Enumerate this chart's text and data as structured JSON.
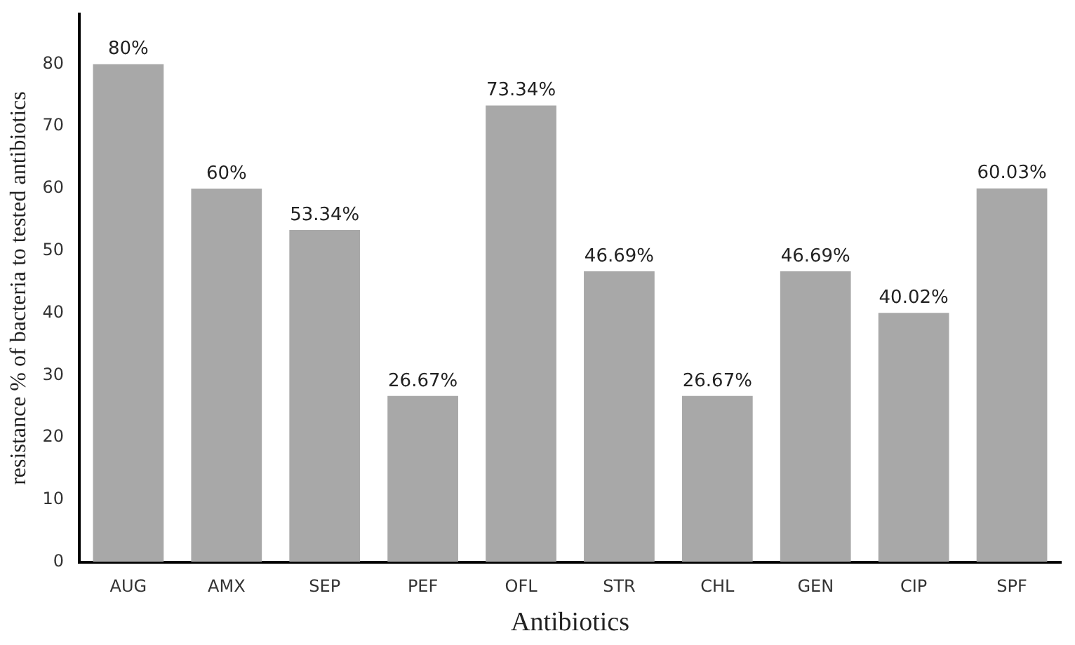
{
  "chart_data": {
    "type": "bar",
    "xlabel": "Antibiotics",
    "ylabel": "resistance % of bacteria to tested antibiotics",
    "categories": [
      "AUG",
      "AMX",
      "SEP",
      "PEF",
      "OFL",
      "STR",
      "CHL",
      "GEN",
      "CIP",
      "SPF"
    ],
    "values": [
      80,
      60,
      53.34,
      26.67,
      73.34,
      46.69,
      26.67,
      46.69,
      40.02,
      60.03
    ],
    "value_labels": [
      "80%",
      "60%",
      "53.34%",
      "26.67%",
      "73.34%",
      "46.69%",
      "26.67%",
      "46.69%",
      "40.02%",
      "60.03%"
    ],
    "color": "#a8a8a8",
    "ylim": [
      0,
      88
    ],
    "yticks": [
      0,
      10,
      20,
      30,
      40,
      50,
      60,
      70,
      80
    ],
    "grid": false,
    "legend": false
  }
}
